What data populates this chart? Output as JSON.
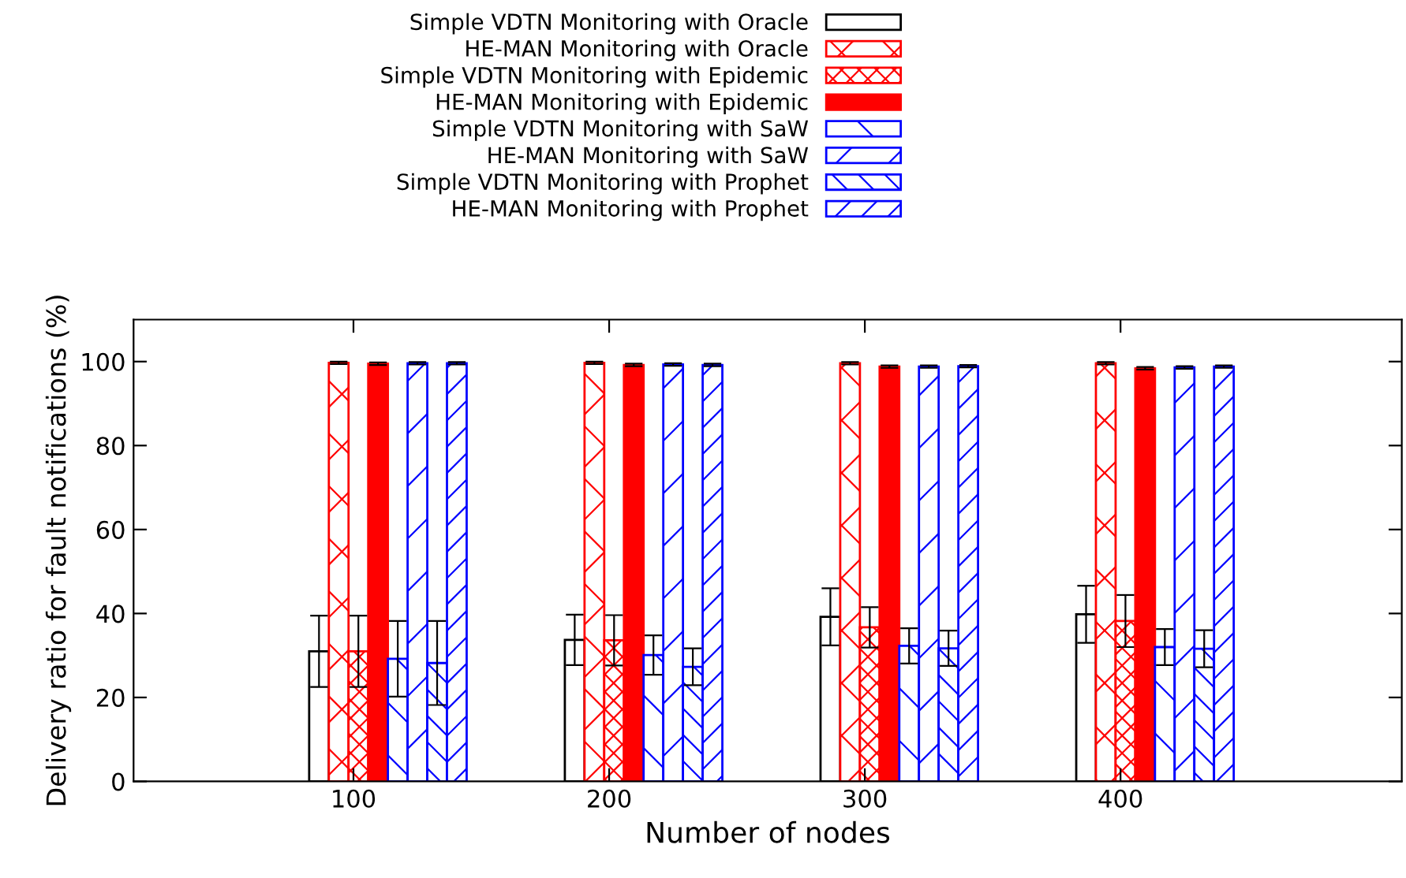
{
  "chart_data": {
    "type": "bar",
    "xlabel": "Number of nodes",
    "ylabel": "Delivery ratio for fault notifications (%)",
    "categories": [
      "100",
      "200",
      "300",
      "400"
    ],
    "series": [
      {
        "name": "Simple VDTN Monitoring with Oracle",
        "color": "#ffffff",
        "values": [
          31,
          33.7,
          39.2,
          39.8
        ],
        "errors": [
          8.5,
          6,
          6.8,
          6.8
        ]
      },
      {
        "name": "HE-MAN Monitoring with Oracle",
        "color": "#ff0000",
        "values": [
          99.7,
          99.7,
          99.6,
          99.6
        ],
        "errors": [
          0.3,
          0.3,
          0.3,
          0.3
        ]
      },
      {
        "name": "Simple VDTN Monitoring with Epidemic",
        "color": "#ff0000",
        "values": [
          31,
          33.6,
          36.7,
          38.2
        ],
        "errors": [
          8.5,
          6,
          4.8,
          6.2
        ]
      },
      {
        "name": "HE-MAN Monitoring with Epidemic",
        "color": "#ff0000",
        "values": [
          99.5,
          99.2,
          98.8,
          98.4
        ],
        "errors": [
          0.3,
          0.3,
          0.3,
          0.3
        ]
      },
      {
        "name": "Simple VDTN Monitoring with SaW",
        "color": "#0000ff",
        "values": [
          29.2,
          30.1,
          32.3,
          32
        ],
        "errors": [
          9,
          4.7,
          4.2,
          4.3
        ]
      },
      {
        "name": "HE-MAN Monitoring with SaW",
        "color": "#0000ff",
        "values": [
          99.6,
          99.3,
          98.8,
          98.6
        ],
        "errors": [
          0.3,
          0.3,
          0.3,
          0.3
        ]
      },
      {
        "name": "Simple VDTN Monitoring with Prophet",
        "color": "#0000ff",
        "values": [
          28.2,
          27.3,
          31.7,
          31.6
        ],
        "errors": [
          10,
          4.4,
          4.2,
          4.4
        ]
      },
      {
        "name": "HE-MAN Monitoring with Prophet",
        "color": "#0000ff",
        "values": [
          99.6,
          99.2,
          98.9,
          98.8
        ],
        "errors": [
          0.3,
          0.3,
          0.3,
          0.3
        ]
      }
    ],
    "ylim": [
      0,
      110
    ],
    "yticks": [
      0,
      20,
      40,
      60,
      80,
      100
    ],
    "grid": false,
    "legend": "top"
  }
}
